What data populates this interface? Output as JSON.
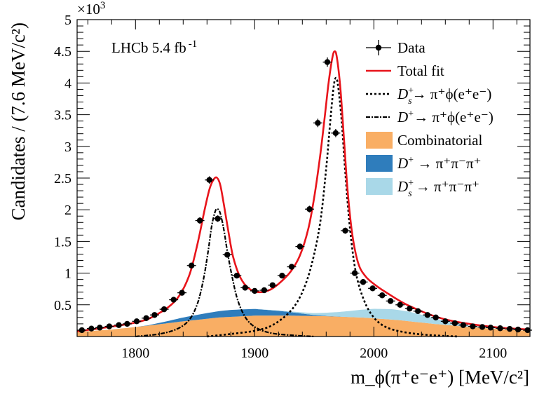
{
  "chart_data": {
    "type": "line",
    "annotation": "LHCb 5.4 fb",
    "annotation_sup": "-1",
    "xlabel": "m_ϕ(π⁺e⁻e⁺) [MeV/c²]",
    "ylabel": "Candidates / (7.6 MeV/c²)",
    "y_multiplier_label": "×10",
    "y_multiplier_exp": "3",
    "xlim": [
      1751,
      2131
    ],
    "ylim": [
      0,
      5000
    ],
    "x_ticks": [
      1800,
      1900,
      2000,
      2100
    ],
    "x_tick_labels": [
      "1800",
      "1900",
      "2000",
      "2100"
    ],
    "y_ticks": [
      500,
      1000,
      1500,
      2000,
      2500,
      3000,
      3500,
      4000,
      4500,
      5000
    ],
    "y_tick_labels": [
      "0.5",
      "1",
      "1.5",
      "2",
      "2.5",
      "3",
      "3.5",
      "4",
      "4.5",
      "5"
    ],
    "legend_position": "top-right",
    "colors": {
      "data": "#000000",
      "total_fit": "#e8141b",
      "combinatorial": "#f9ae64",
      "dplus_3pi": "#2f7dbc",
      "ds_3pi": "#a9d8e8"
    },
    "legend": [
      {
        "label": "Data",
        "kind": "data"
      },
      {
        "label": "Total fit",
        "kind": "total_fit"
      },
      {
        "label_main": "D",
        "label_sub": "s",
        "label_sup": "+",
        "label_rest": "→  π⁺ϕ(e⁺e⁻)",
        "kind": "ds_signal"
      },
      {
        "label_main": "D",
        "label_sup": "+",
        "label_rest": "→  π⁺ϕ(e⁺e⁻)",
        "kind": "dplus_signal"
      },
      {
        "label": "Combinatorial",
        "kind": "combinatorial"
      },
      {
        "label_main": "D",
        "label_sup": "+",
        "label_rest": " →  π⁺π⁻π⁺",
        "kind": "dplus_3pi"
      },
      {
        "label_main": "D",
        "label_sub": "s",
        "label_sup": "+",
        "label_rest": " →  π⁺π⁻π⁺",
        "kind": "ds_3pi"
      }
    ],
    "data_points": {
      "x": [
        1755,
        1763,
        1770,
        1778,
        1786,
        1793,
        1801,
        1809,
        1816,
        1824,
        1832,
        1839,
        1847,
        1854,
        1862,
        1869,
        1877,
        1885,
        1892,
        1900,
        1908,
        1915,
        1923,
        1931,
        1938,
        1946,
        1953,
        1961,
        1968,
        1976,
        1984,
        1991,
        1999,
        2007,
        2014,
        2022,
        2030,
        2037,
        2045,
        2052,
        2060,
        2068,
        2075,
        2083,
        2091,
        2098,
        2106,
        2114,
        2121,
        2129
      ],
      "y": [
        100,
        125,
        140,
        160,
        180,
        200,
        240,
        290,
        340,
        430,
        580,
        690,
        1120,
        1830,
        2470,
        1860,
        1290,
        960,
        770,
        720,
        730,
        810,
        960,
        1100,
        1420,
        2010,
        3370,
        4330,
        3210,
        1670,
        1000,
        860,
        760,
        650,
        560,
        500,
        440,
        400,
        340,
        300,
        240,
        210,
        180,
        160,
        150,
        140,
        130,
        120,
        110,
        100
      ]
    },
    "series": [
      {
        "name": "Total fit",
        "kind": "total_fit",
        "x": [
          1751,
          1800,
          1820,
          1835,
          1845,
          1852,
          1858,
          1862,
          1865,
          1868,
          1871,
          1874,
          1878,
          1882,
          1888,
          1895,
          1903,
          1912,
          1920,
          1930,
          1938,
          1945,
          1950,
          1955,
          1959,
          1962,
          1965,
          1967,
          1969,
          1972,
          1975,
          1978,
          1982,
          1987,
          1993,
          2000,
          2010,
          2030,
          2060,
          2100,
          2131
        ],
        "y": [
          80,
          220,
          370,
          600,
          960,
          1460,
          2000,
          2320,
          2460,
          2510,
          2400,
          2100,
          1650,
          1250,
          930,
          760,
          700,
          730,
          830,
          1020,
          1280,
          1700,
          2200,
          2860,
          3500,
          4000,
          4380,
          4500,
          4400,
          3900,
          3100,
          2300,
          1600,
          1150,
          950,
          830,
          700,
          480,
          270,
          150,
          110
        ]
      },
      {
        "name": "D_s+ → π+ϕ(e+e−)",
        "kind": "ds_signal",
        "x": [
          1860,
          1880,
          1900,
          1915,
          1930,
          1940,
          1948,
          1955,
          1960,
          1963,
          1966,
          1968,
          1970,
          1973,
          1976,
          1980,
          1985,
          1992,
          2000,
          2010,
          2025,
          2045,
          2070
        ],
        "y": [
          0,
          40,
          90,
          180,
          400,
          700,
          1150,
          1800,
          2650,
          3300,
          3900,
          4080,
          3950,
          3400,
          2600,
          1700,
          1000,
          560,
          300,
          150,
          70,
          25,
          0
        ]
      },
      {
        "name": "D+ → π+ϕ(e+e−)",
        "kind": "dplus_signal",
        "x": [
          1800,
          1820,
          1835,
          1845,
          1852,
          1857,
          1861,
          1864,
          1867,
          1869,
          1871,
          1874,
          1877,
          1881,
          1886,
          1893,
          1902,
          1915,
          1935,
          1950
        ],
        "y": [
          0,
          40,
          120,
          260,
          520,
          900,
          1350,
          1750,
          1980,
          2010,
          1950,
          1700,
          1350,
          950,
          560,
          280,
          130,
          50,
          15,
          0
        ]
      }
    ],
    "stacked_areas": [
      {
        "name": "Combinatorial",
        "kind": "combinatorial",
        "x": [
          1751,
          1780,
          1810,
          1840,
          1870,
          1900,
          1930,
          1960,
          1990,
          2020,
          2050,
          2080,
          2110,
          2131
        ],
        "y": [
          70,
          110,
          170,
          240,
          300,
          330,
          330,
          320,
          300,
          260,
          200,
          150,
          110,
          90
        ]
      },
      {
        "name": "D+ → π+π−π+",
        "kind": "dplus_3pi",
        "x": [
          1751,
          1800,
          1810,
          1825,
          1840,
          1860,
          1880,
          1900,
          1920,
          1940,
          1950,
          1960,
          1980,
          2131
        ],
        "y": [
          0,
          0,
          5,
          30,
          60,
          90,
          110,
          105,
          75,
          35,
          15,
          5,
          0,
          0
        ]
      },
      {
        "name": "D_s+ → π+π−π+",
        "kind": "ds_3pi",
        "x": [
          1751,
          1900,
          1930,
          1950,
          1970,
          1985,
          2000,
          2015,
          2030,
          2045,
          2060,
          2080,
          2100,
          2131
        ],
        "y": [
          0,
          0,
          10,
          30,
          70,
          110,
          150,
          165,
          150,
          110,
          60,
          20,
          5,
          0
        ]
      }
    ]
  }
}
